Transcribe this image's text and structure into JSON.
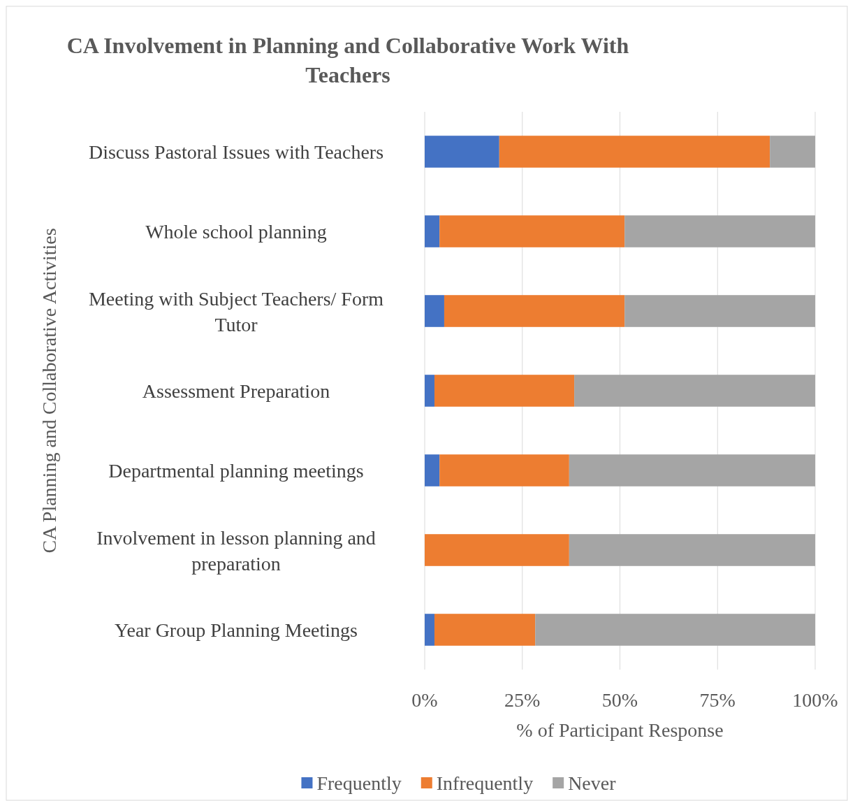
{
  "chart_data": {
    "type": "bar",
    "orientation": "horizontal",
    "stacked": true,
    "title": "CA Involvement in Planning and Collaborative Work With Teachers",
    "xlabel": "% of Participant Response",
    "ylabel": "CA Planning and Collaborative Activities",
    "categories": [
      "Discuss Pastoral Issues with Teachers",
      "Whole school planning",
      "Meeting with Subject Teachers/ Form Tutor",
      "Assessment Preparation",
      "Departmental planning meetings",
      "Involvement in lesson planning and preparation",
      "Year Group Planning Meetings"
    ],
    "series": [
      {
        "name": "Frequently",
        "color": "#4472c4",
        "values": [
          19.1,
          3.8,
          5.0,
          2.5,
          3.8,
          0,
          2.5
        ]
      },
      {
        "name": "Infrequently",
        "color": "#ed7d31",
        "values": [
          69.3,
          47.4,
          46.2,
          35.8,
          33.2,
          37.0,
          25.8
        ]
      },
      {
        "name": "Never",
        "color": "#a5a5a5",
        "values": [
          11.6,
          48.8,
          48.8,
          61.7,
          63.0,
          63.0,
          71.7
        ]
      }
    ],
    "xlim": [
      0,
      100
    ],
    "xticks": [
      {
        "value": 0,
        "label": "0%"
      },
      {
        "value": 25,
        "label": "25%"
      },
      {
        "value": 50,
        "label": "50%"
      },
      {
        "value": 75,
        "label": "75%"
      },
      {
        "value": 100,
        "label": "100%"
      }
    ],
    "grid": "x",
    "legend": "bottom"
  }
}
